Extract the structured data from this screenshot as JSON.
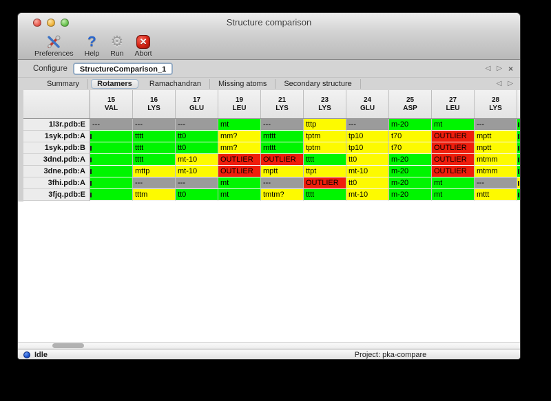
{
  "window": {
    "title": "Structure comparison"
  },
  "toolbar": {
    "items": [
      {
        "label": "Preferences",
        "icon": "tools-icon"
      },
      {
        "label": "Help",
        "icon": "help-icon"
      },
      {
        "label": "Run",
        "icon": "gear-icon"
      },
      {
        "label": "Abort",
        "icon": "abort-icon"
      }
    ]
  },
  "configure": {
    "label": "Configure",
    "value": "StructureComparison_1",
    "nav": {
      "prev": "◁",
      "next": "▷",
      "close": "×"
    }
  },
  "tabs": {
    "items": [
      {
        "label": "Summary",
        "active": false
      },
      {
        "label": "Rotamers",
        "active": true
      },
      {
        "label": "Ramachandran",
        "active": false
      },
      {
        "label": "Missing atoms",
        "active": false
      },
      {
        "label": "Secondary structure",
        "active": false
      }
    ],
    "nav": {
      "prev": "◁",
      "next": "▷"
    }
  },
  "colors": {
    "green": "#00f500",
    "yellow": "#fdfa00",
    "red": "#ef1d0c",
    "gray": "#9b9b9b"
  },
  "table": {
    "columns": [
      {
        "num": "15",
        "res": "VAL"
      },
      {
        "num": "16",
        "res": "LYS"
      },
      {
        "num": "17",
        "res": "GLU"
      },
      {
        "num": "19",
        "res": "LEU"
      },
      {
        "num": "21",
        "res": "LYS"
      },
      {
        "num": "23",
        "res": "LYS"
      },
      {
        "num": "24",
        "res": "GLU"
      },
      {
        "num": "25",
        "res": "ASP"
      },
      {
        "num": "27",
        "res": "LEU"
      },
      {
        "num": "28",
        "res": "LYS"
      }
    ],
    "rows": [
      {
        "label": "1l3r.pdb:E",
        "edge": "green",
        "cells": [
          {
            "t": "---",
            "c": "gray"
          },
          {
            "t": "---",
            "c": "gray"
          },
          {
            "t": "---",
            "c": "gray"
          },
          {
            "t": "mt",
            "c": "green"
          },
          {
            "t": "---",
            "c": "gray"
          },
          {
            "t": "tttp",
            "c": "yellow"
          },
          {
            "t": "---",
            "c": "gray"
          },
          {
            "t": "m-20",
            "c": "green"
          },
          {
            "t": "mt",
            "c": "green"
          },
          {
            "t": "---",
            "c": "gray"
          }
        ]
      },
      {
        "label": "1syk.pdb:A",
        "edge": "green",
        "cells": [
          {
            "t": "",
            "c": "green",
            "clip": true
          },
          {
            "t": "tttt",
            "c": "green"
          },
          {
            "t": "tt0",
            "c": "green"
          },
          {
            "t": "mm?",
            "c": "yellow"
          },
          {
            "t": "mttt",
            "c": "green"
          },
          {
            "t": "tptm",
            "c": "yellow"
          },
          {
            "t": "tp10",
            "c": "yellow"
          },
          {
            "t": "t70",
            "c": "yellow"
          },
          {
            "t": "OUTLIER",
            "c": "red"
          },
          {
            "t": "mptt",
            "c": "yellow"
          }
        ]
      },
      {
        "label": "1syk.pdb:B",
        "edge": "green",
        "cells": [
          {
            "t": "",
            "c": "green",
            "clip": true
          },
          {
            "t": "tttt",
            "c": "green"
          },
          {
            "t": "tt0",
            "c": "green"
          },
          {
            "t": "mm?",
            "c": "yellow"
          },
          {
            "t": "mttt",
            "c": "green"
          },
          {
            "t": "tptm",
            "c": "yellow"
          },
          {
            "t": "tp10",
            "c": "yellow"
          },
          {
            "t": "t70",
            "c": "yellow"
          },
          {
            "t": "OUTLIER",
            "c": "red"
          },
          {
            "t": "mptt",
            "c": "yellow"
          }
        ]
      },
      {
        "label": "3dnd.pdb:A",
        "edge": "green",
        "cells": [
          {
            "t": "",
            "c": "green",
            "clip": true
          },
          {
            "t": "tttt",
            "c": "green"
          },
          {
            "t": "mt-10",
            "c": "yellow"
          },
          {
            "t": "OUTLIER",
            "c": "red"
          },
          {
            "t": "OUTLIER",
            "c": "red"
          },
          {
            "t": "tttt",
            "c": "green"
          },
          {
            "t": "tt0",
            "c": "yellow"
          },
          {
            "t": "m-20",
            "c": "green"
          },
          {
            "t": "OUTLIER",
            "c": "red"
          },
          {
            "t": "mtmm",
            "c": "yellow"
          }
        ]
      },
      {
        "label": "3dne.pdb:A",
        "edge": "green",
        "cells": [
          {
            "t": "",
            "c": "green",
            "clip": true
          },
          {
            "t": "mttp",
            "c": "yellow"
          },
          {
            "t": "mt-10",
            "c": "yellow"
          },
          {
            "t": "OUTLIER",
            "c": "red"
          },
          {
            "t": "mptt",
            "c": "yellow"
          },
          {
            "t": "ttpt",
            "c": "yellow"
          },
          {
            "t": "mt-10",
            "c": "yellow"
          },
          {
            "t": "m-20",
            "c": "green"
          },
          {
            "t": "OUTLIER",
            "c": "red"
          },
          {
            "t": "mtmm",
            "c": "yellow"
          }
        ]
      },
      {
        "label": "3fhi.pdb:A",
        "edge": "yellow",
        "cells": [
          {
            "t": "",
            "c": "green",
            "clip": true
          },
          {
            "t": "---",
            "c": "gray"
          },
          {
            "t": "---",
            "c": "gray"
          },
          {
            "t": "mt",
            "c": "green"
          },
          {
            "t": "---",
            "c": "gray"
          },
          {
            "t": "OUTLIER",
            "c": "red"
          },
          {
            "t": "tt0",
            "c": "yellow"
          },
          {
            "t": "m-20",
            "c": "green"
          },
          {
            "t": "mt",
            "c": "green"
          },
          {
            "t": "---",
            "c": "gray"
          }
        ]
      },
      {
        "label": "3fjq.pdb:E",
        "edge": "green",
        "cells": [
          {
            "t": "",
            "c": "green",
            "clip": true
          },
          {
            "t": "tttm",
            "c": "yellow"
          },
          {
            "t": "tt0",
            "c": "green"
          },
          {
            "t": "mt",
            "c": "green"
          },
          {
            "t": "tmtm?",
            "c": "yellow"
          },
          {
            "t": "tttt",
            "c": "green"
          },
          {
            "t": "mt-10",
            "c": "yellow"
          },
          {
            "t": "m-20",
            "c": "green"
          },
          {
            "t": "mt",
            "c": "green"
          },
          {
            "t": "mttt",
            "c": "yellow"
          }
        ]
      }
    ]
  },
  "status": {
    "state": "Idle",
    "project": "Project: pka-compare"
  }
}
